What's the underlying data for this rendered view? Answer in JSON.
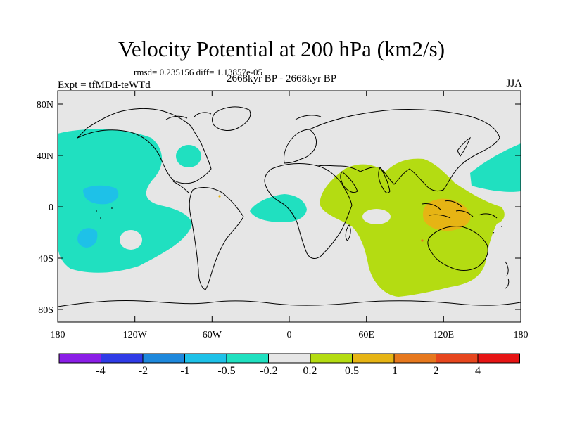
{
  "title": "Velocity Potential at 200 hPa (km2/s)",
  "stats_line": "rmsd= 0.235156 diff= 1.13857e-05",
  "experiment": "Expt = tfMDd-teWTd",
  "period": "2668kyr BP - 2668kyr BP",
  "season": "JJA",
  "axes": {
    "x_ticks": [
      "180",
      "120W",
      "60W",
      "0",
      "60E",
      "120E",
      "180"
    ],
    "y_ticks": [
      "80N",
      "40N",
      "0",
      "40S",
      "80S"
    ]
  },
  "colorbar": {
    "labels": [
      "-4",
      "-2",
      "-1",
      "-0.5",
      "-0.2",
      "0.2",
      "0.5",
      "1",
      "2",
      "4"
    ],
    "colors": [
      "#8a1ee6",
      "#2f3be6",
      "#1e88dc",
      "#1ec1e8",
      "#20e0c0",
      "#e6e6e6",
      "#b4dc12",
      "#e6b414",
      "#e6781e",
      "#e6461e",
      "#e61414"
    ]
  },
  "map": {
    "background": "#e6e6e6",
    "coastline_color": "#000000"
  }
}
